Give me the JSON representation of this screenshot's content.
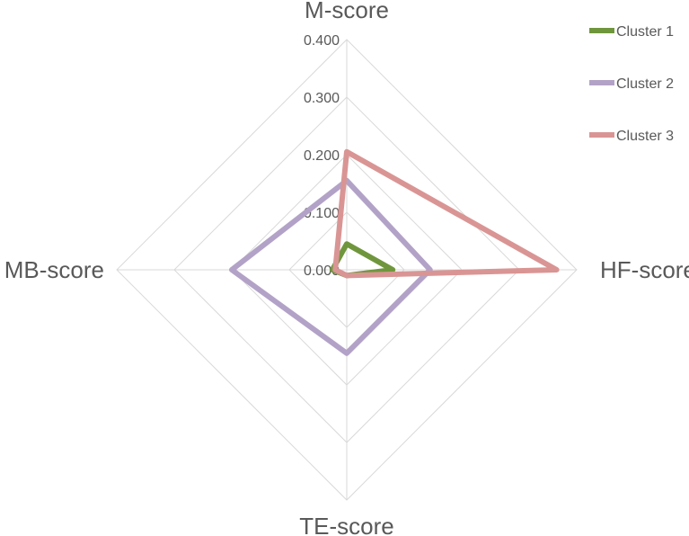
{
  "chart_data": {
    "type": "radar",
    "title": "",
    "axes": [
      "M-score",
      "HF-score",
      "TE-score",
      "MB-score"
    ],
    "rlim": [
      0,
      0.4
    ],
    "ticks": [
      "0.000",
      "0.100",
      "0.200",
      "0.300",
      "0.400"
    ],
    "tick_values": [
      0,
      0.1,
      0.2,
      0.3,
      0.4
    ],
    "grid": true,
    "legend_position": "top-right",
    "series": [
      {
        "name": "Cluster 1",
        "color": "#70963d",
        "values": [
          0.045,
          0.08,
          0.01,
          0.025
        ]
      },
      {
        "name": "Cluster 2",
        "color": "#b3a2c7",
        "values": [
          0.155,
          0.145,
          0.145,
          0.2
        ]
      },
      {
        "name": "Cluster 3",
        "color": "#d99594",
        "values": [
          0.205,
          0.365,
          0.01,
          0.02
        ]
      }
    ]
  }
}
